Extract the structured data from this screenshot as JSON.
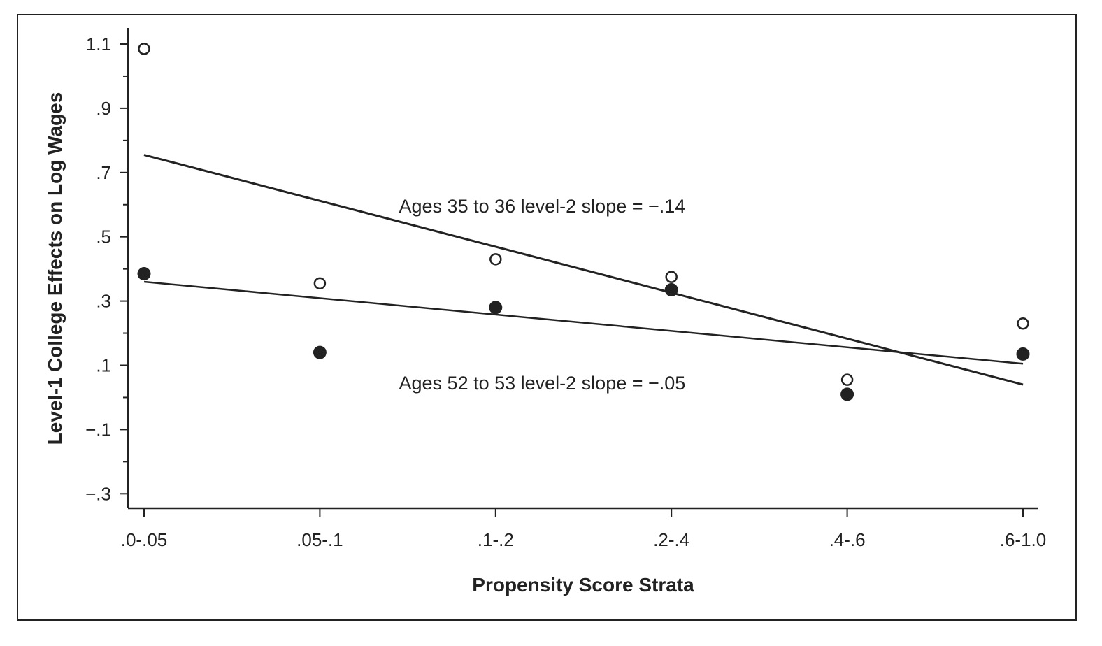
{
  "chart_data": {
    "type": "scatter",
    "title": "",
    "xlabel": "Propensity Score Strata",
    "ylabel": "Level-1 College Effects on Log Wages",
    "categories": [
      ".0-.05",
      ".05-.1",
      ".1-.2",
      ".2-.4",
      ".4-.6",
      ".6-1.0"
    ],
    "ylim": [
      -0.35,
      1.15
    ],
    "yticks": [
      {
        "value": 1.1,
        "label": "1.1"
      },
      {
        "value": 0.9,
        "label": ".9"
      },
      {
        "value": 0.7,
        "label": ".7"
      },
      {
        "value": 0.5,
        "label": ".5"
      },
      {
        "value": 0.3,
        "label": ".3"
      },
      {
        "value": 0.1,
        "label": ".1"
      },
      {
        "value": -0.1,
        "label": "−.1"
      },
      {
        "value": -0.3,
        "label": "−.3"
      }
    ],
    "grid": false,
    "series": [
      {
        "marker": "open-circle",
        "values": [
          1.085,
          0.355,
          0.43,
          0.375,
          0.055,
          0.23
        ],
        "fit": {
          "start": 0.755,
          "end": 0.04
        }
      },
      {
        "marker": "filled-circle",
        "values": [
          0.385,
          0.14,
          0.28,
          0.335,
          0.01,
          0.135
        ],
        "fit": {
          "start": 0.36,
          "end": 0.105
        }
      }
    ],
    "annotations": [
      {
        "text": "Ages 35 to 36 level-2 slope = −.14",
        "x_cat": 1.45,
        "y": 0.575
      },
      {
        "text": "Ages 52 to 53 level-2 slope = −.05",
        "x_cat": 1.45,
        "y": 0.025
      }
    ],
    "colors": {
      "ink": "#222222",
      "background": "#ffffff"
    }
  }
}
